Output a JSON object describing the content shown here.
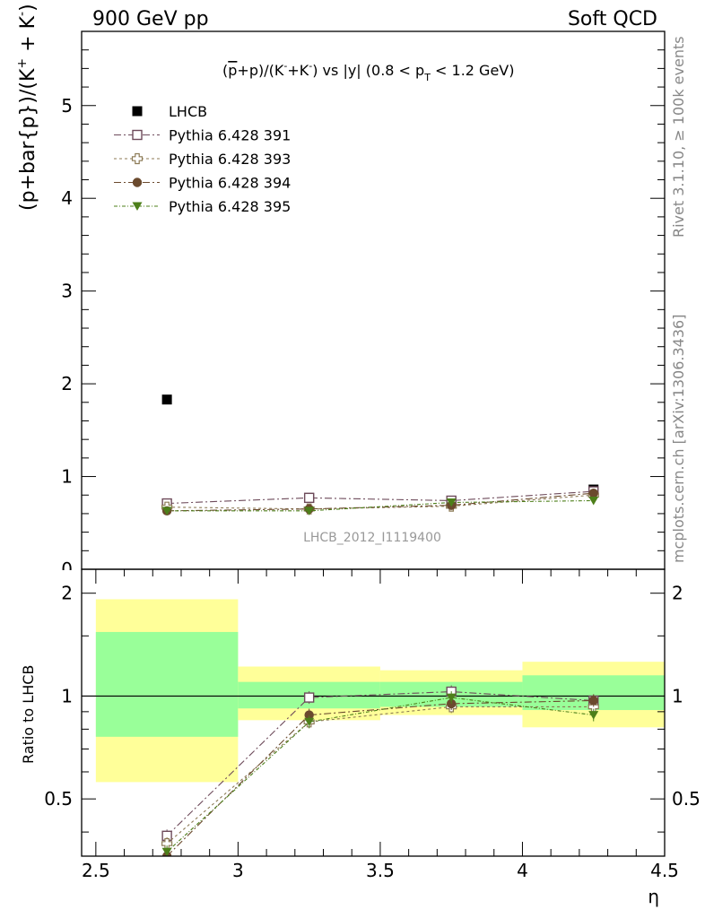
{
  "header": {
    "left": "900 GeV pp",
    "right": "Soft QCD"
  },
  "side_labels": {
    "rivet": "Rivet 3.1.10, ≥ 100k events",
    "mcplots": "mcplots.cern.ch [arXiv:1306.3436]"
  },
  "main": {
    "title": {
      "pre": "(",
      "pbar": "p",
      "mid1": "+p)/(K",
      "sup1": "-",
      "mid2": "+K",
      "sup2": "-",
      "mid3": ") vs |y| (0.8 < p",
      "sub": "T",
      "post": " < 1.2 GeV)"
    },
    "ylabel": {
      "a": "(p+bar{p})/(K",
      "sup1": "+",
      "b": " + K",
      "sup2": "-",
      "c": ")"
    },
    "watermark": "LHCB_2012_I1119400"
  },
  "ratio": {
    "ylabel": "Ratio to LHCB"
  },
  "xaxis": {
    "label": "η"
  },
  "chart_data": [
    {
      "type": "scatter",
      "xlim": [
        2.45,
        4.5
      ],
      "ylim": [
        0,
        5.8
      ],
      "yticks": [
        0,
        1,
        2,
        3,
        4,
        5
      ],
      "ytick_labels": [
        "0",
        "1",
        "2",
        "3",
        "4",
        "5"
      ],
      "xticks": [
        2.5,
        3,
        3.5,
        4,
        4.5
      ],
      "legend_position": "top-left",
      "series": [
        {
          "name": "LHCB",
          "color": "#000000",
          "marker": "filled-square",
          "x": [
            2.75,
            3.25,
            3.75,
            4.25
          ],
          "y": [
            1.83,
            0.77,
            0.73,
            0.86
          ]
        },
        {
          "name": "Pythia 6.428 391",
          "color": "#6e4b5b",
          "marker": "open-square",
          "x": [
            2.75,
            3.25,
            3.75,
            4.25
          ],
          "y": [
            0.71,
            0.77,
            0.74,
            0.84
          ]
        },
        {
          "name": "Pythia 6.428 393",
          "color": "#8c7a55",
          "marker": "open-cross",
          "x": [
            2.75,
            3.25,
            3.75,
            4.25
          ],
          "y": [
            0.67,
            0.65,
            0.68,
            0.8
          ]
        },
        {
          "name": "Pythia 6.428 394",
          "color": "#6b4a2e",
          "marker": "filled-circle",
          "x": [
            2.75,
            3.25,
            3.75,
            4.25
          ],
          "y": [
            0.63,
            0.65,
            0.69,
            0.82
          ]
        },
        {
          "name": "Pythia 6.428 395",
          "color": "#4d7f1a",
          "marker": "filled-triangle-down",
          "x": [
            2.75,
            3.25,
            3.75,
            4.25
          ],
          "y": [
            0.63,
            0.63,
            0.72,
            0.74
          ]
        }
      ]
    },
    {
      "type": "scatter",
      "title": "Ratio to LHCB",
      "xlabel": "η",
      "xlim": [
        2.45,
        4.5
      ],
      "ylim": [
        0.34,
        2.35
      ],
      "log_y": true,
      "yticks": [
        0.5,
        1,
        2
      ],
      "ytick_labels": [
        "0.5",
        "1",
        "2"
      ],
      "xticks": [
        2.5,
        3,
        3.5,
        4,
        4.5
      ],
      "xtick_labels": [
        "2.5",
        "3",
        "3.5",
        "4",
        "4.5"
      ],
      "bands": [
        {
          "x0": 2.5,
          "x1": 3.0,
          "yellow": [
            0.56,
            1.92
          ],
          "green": [
            0.76,
            1.54
          ]
        },
        {
          "x0": 3.0,
          "x1": 3.5,
          "yellow": [
            0.85,
            1.22
          ],
          "green": [
            0.92,
            1.1
          ]
        },
        {
          "x0": 3.5,
          "x1": 4.0,
          "yellow": [
            0.88,
            1.19
          ],
          "green": [
            0.93,
            1.1
          ]
        },
        {
          "x0": 4.0,
          "x1": 4.5,
          "yellow": [
            0.81,
            1.26
          ],
          "green": [
            0.91,
            1.15
          ]
        }
      ],
      "band_colors": {
        "yellow": "#ffff99",
        "green": "#99ff99"
      },
      "reference_line": 1,
      "series": [
        {
          "name": "Pythia 6.428 391",
          "color": "#6e4b5b",
          "marker": "open-square",
          "x": [
            2.75,
            3.25,
            3.75,
            4.25
          ],
          "y": [
            0.39,
            0.99,
            1.03,
            0.97
          ]
        },
        {
          "name": "Pythia 6.428 393",
          "color": "#8c7a55",
          "marker": "open-cross",
          "x": [
            2.75,
            3.25,
            3.75,
            4.25
          ],
          "y": [
            0.37,
            0.84,
            0.93,
            0.93
          ]
        },
        {
          "name": "Pythia 6.428 394",
          "color": "#6b4a2e",
          "marker": "filled-circle",
          "x": [
            2.75,
            3.25,
            3.75,
            4.25
          ],
          "y": [
            0.34,
            0.88,
            0.95,
            0.97
          ]
        },
        {
          "name": "Pythia 6.428 395",
          "color": "#4d7f1a",
          "marker": "filled-triangle-down",
          "x": [
            2.75,
            3.25,
            3.75,
            4.25
          ],
          "y": [
            0.35,
            0.84,
            0.99,
            0.88
          ]
        }
      ]
    }
  ]
}
